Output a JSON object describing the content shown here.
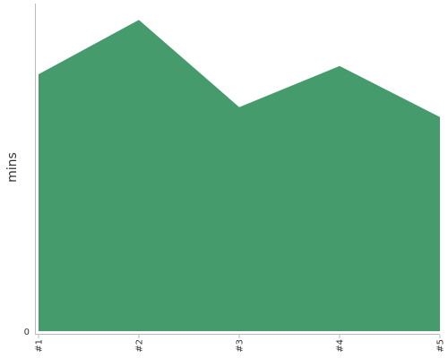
{
  "chart_data": {
    "type": "area",
    "categories": [
      "#1",
      "#2",
      "#3",
      "#4",
      "#5"
    ],
    "series": [
      {
        "values": [
          78,
          94.5,
          68,
          80.5,
          65
        ]
      }
    ],
    "xlabel": "",
    "ylabel": "mins",
    "ylim": [
      0,
      100
    ],
    "y_tick_labels": [
      "0"
    ],
    "grid": false,
    "legend": "none",
    "colors": {
      "area": "#459b6c",
      "axis": "#bbbbbb"
    }
  }
}
